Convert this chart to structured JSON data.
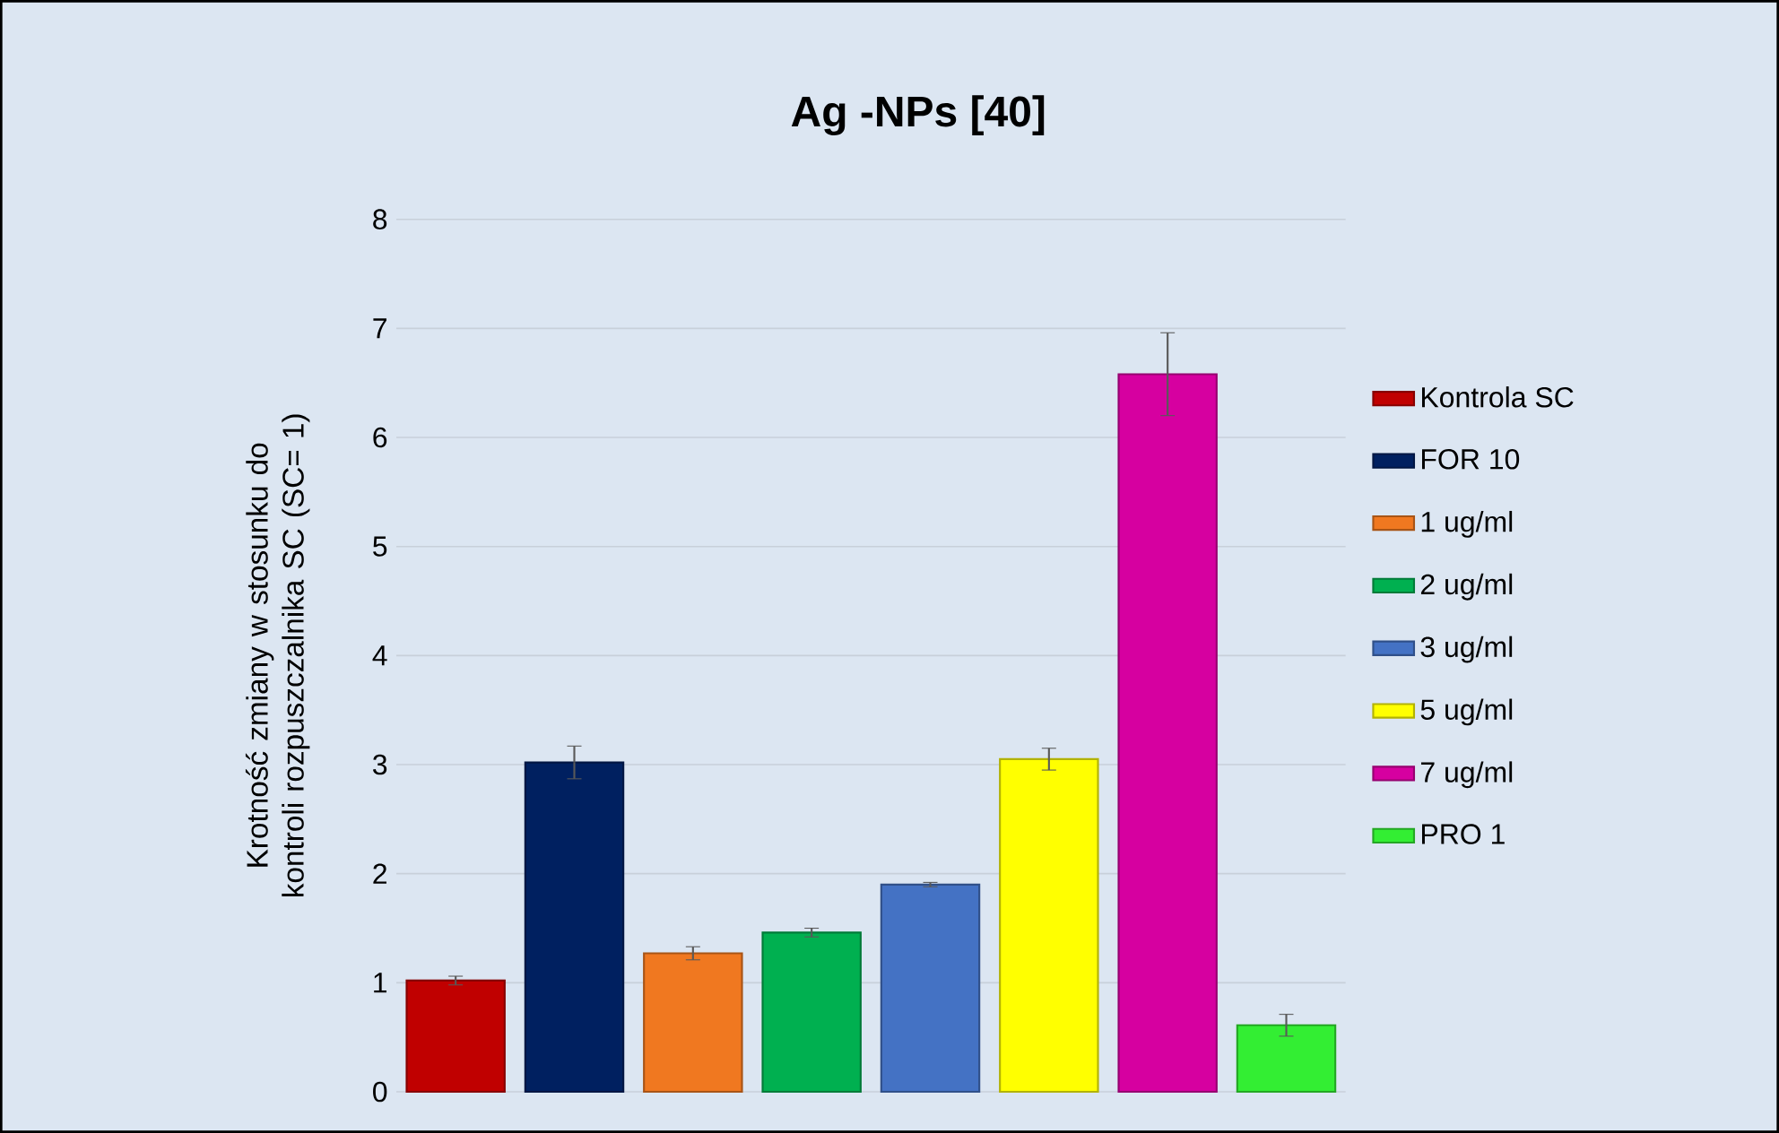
{
  "chart_data": {
    "type": "bar",
    "title": "Ag -NPs [40]",
    "ylabel": "Krotność zmiany w stosunku do kontroli rozpuszczalnika SC  (SC= 1)",
    "categories": [
      null,
      null,
      null,
      null,
      null,
      null,
      null,
      null
    ],
    "series": [
      {
        "name": "Kontrola SC",
        "color": "#c00000",
        "values": [
          1.02,
          null,
          null,
          null,
          null,
          null,
          null,
          null
        ],
        "errors": [
          0.04,
          null,
          null,
          null,
          null,
          null,
          null,
          null
        ]
      },
      {
        "name": "FOR 10",
        "color": "#002060",
        "values": [
          null,
          3.02,
          null,
          null,
          null,
          null,
          null,
          null
        ],
        "errors": [
          null,
          0.15,
          null,
          null,
          null,
          null,
          null,
          null
        ]
      },
      {
        "name": "1 ug/ml",
        "color": "#f07820",
        "values": [
          null,
          null,
          1.27,
          null,
          null,
          null,
          null,
          null
        ],
        "errors": [
          null,
          null,
          0.06,
          null,
          null,
          null,
          null,
          null
        ]
      },
      {
        "name": "2 ug/ml",
        "color": "#00b050",
        "values": [
          null,
          null,
          null,
          1.46,
          null,
          null,
          null,
          null
        ],
        "errors": [
          null,
          null,
          null,
          0.04,
          null,
          null,
          null,
          null
        ]
      },
      {
        "name": "3 ug/ml",
        "color": "#4472c4",
        "values": [
          null,
          null,
          null,
          null,
          1.9,
          null,
          null,
          null
        ],
        "errors": [
          null,
          null,
          null,
          null,
          0.02,
          null,
          null,
          null
        ]
      },
      {
        "name": "5 ug/ml",
        "color": "#ffff00",
        "values": [
          null,
          null,
          null,
          null,
          null,
          3.05,
          null,
          null
        ],
        "errors": [
          null,
          null,
          null,
          null,
          null,
          0.1,
          null,
          null
        ]
      },
      {
        "name": "7 ug/ml",
        "color": "#d600a0",
        "values": [
          null,
          null,
          null,
          null,
          null,
          null,
          6.58,
          null
        ],
        "errors": [
          null,
          null,
          null,
          null,
          null,
          null,
          0.38,
          null
        ]
      },
      {
        "name": "PRO 1",
        "color": "#33ee33",
        "values": [
          null,
          null,
          null,
          null,
          null,
          null,
          null,
          0.61
        ],
        "errors": [
          null,
          null,
          null,
          null,
          null,
          null,
          null,
          0.1
        ]
      }
    ],
    "ylim": [
      0,
      8
    ],
    "yticks": [
      0,
      1,
      2,
      3,
      4,
      5,
      6,
      7,
      8
    ],
    "grid": "y",
    "legend": "right"
  }
}
